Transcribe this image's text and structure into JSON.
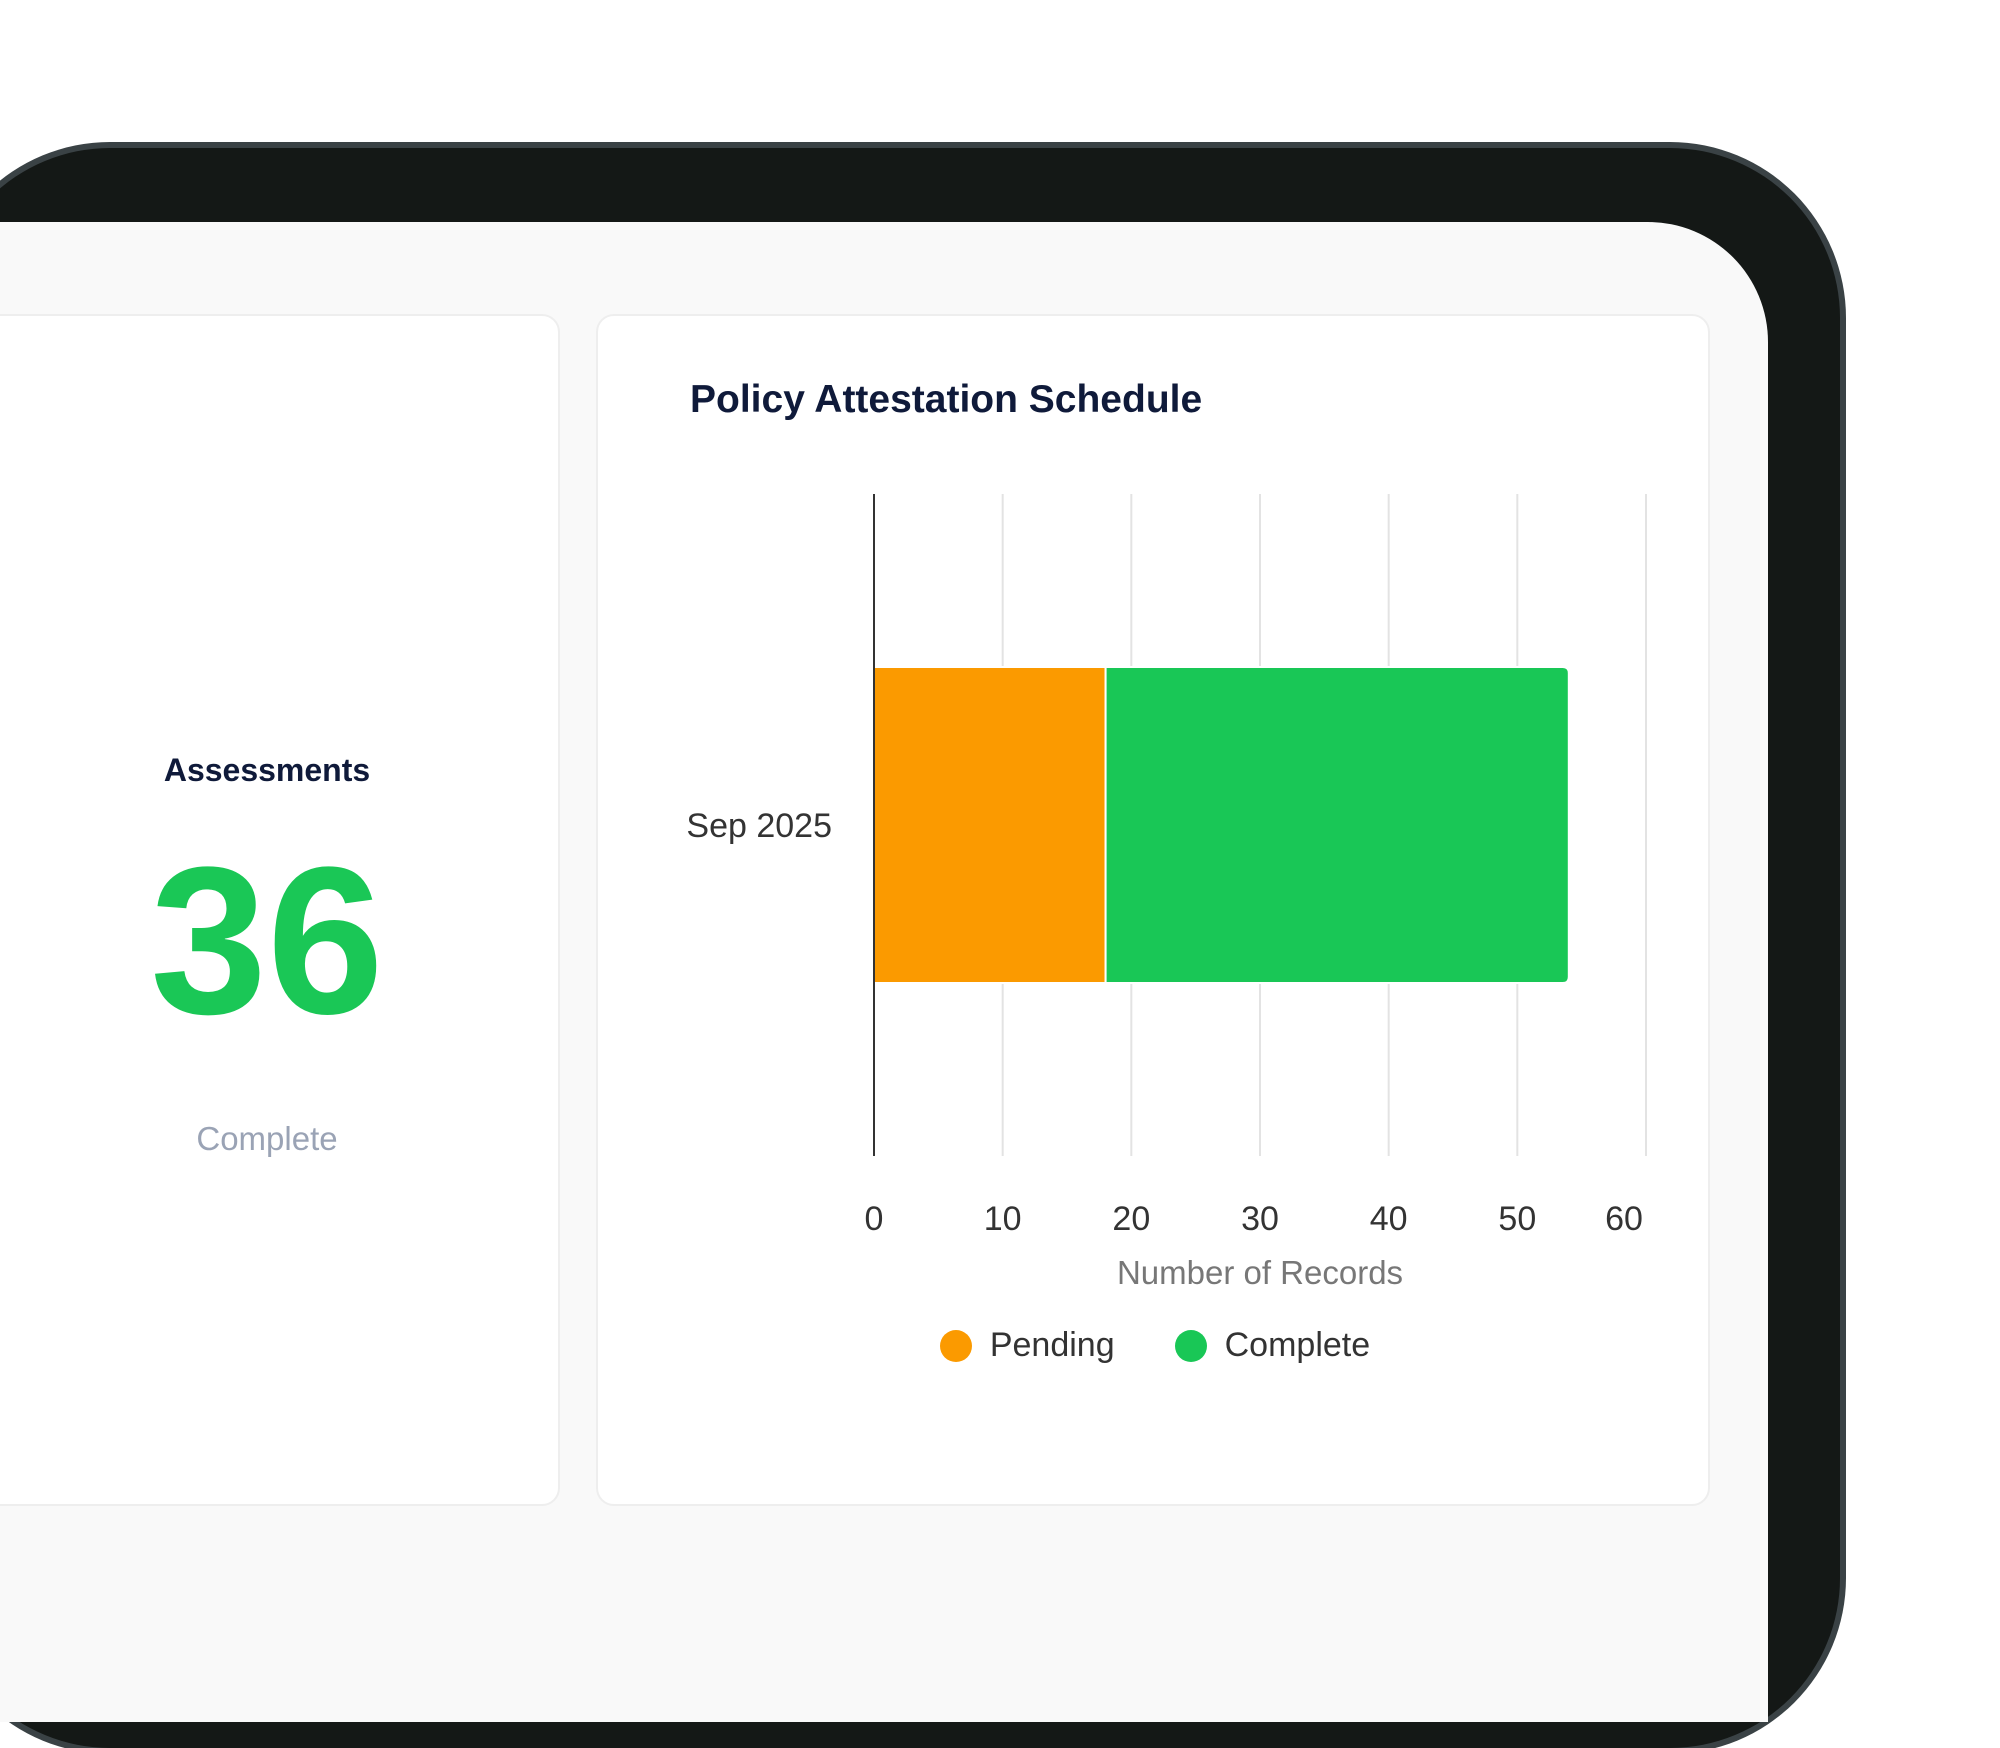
{
  "stat_card": {
    "title": "Assessments",
    "value": "36",
    "caption": "Complete",
    "value_color": "#1ac756"
  },
  "chart_data": {
    "type": "bar",
    "orientation": "horizontal",
    "stacked": true,
    "title": "Policy Attestation Schedule",
    "categories": [
      "Sep 2025"
    ],
    "series": [
      {
        "name": "Pending",
        "values": [
          18
        ],
        "color": "#fb9a00"
      },
      {
        "name": "Complete",
        "values": [
          36
        ],
        "color": "#19c756"
      }
    ],
    "xlabel": "Number of Records",
    "ylabel": "",
    "xlim": [
      0,
      60
    ],
    "xticks": [
      "0",
      "10",
      "20",
      "30",
      "40",
      "50",
      "60"
    ],
    "grid": true,
    "legend_position": "bottom"
  }
}
